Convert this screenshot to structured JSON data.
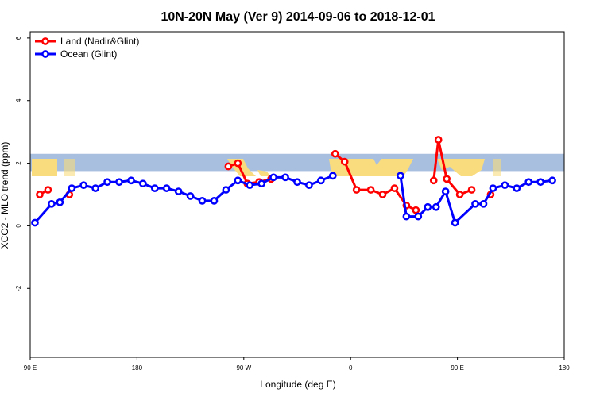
{
  "chart_data": {
    "type": "line",
    "title": "10N-20N May (Ver 9)   2014-09-06 to 2018-12-01",
    "xlabel": "Longitude (deg E)",
    "ylabel": "XCO2 - MLO trend (ppm)",
    "xlim": [
      90,
      540
    ],
    "ylim": [
      -4.2,
      6.2
    ],
    "x_ticks": [
      {
        "value": 90,
        "label": "90 E"
      },
      {
        "value": 180,
        "label": "180"
      },
      {
        "value": 270,
        "label": "90 W"
      },
      {
        "value": 360,
        "label": "0"
      },
      {
        "value": 450,
        "label": "90 E"
      },
      {
        "value": 540,
        "label": "180"
      }
    ],
    "y_ticks": [
      {
        "value": -2,
        "label": "-2"
      },
      {
        "value": 0,
        "label": "0"
      },
      {
        "value": 2,
        "label": "2"
      },
      {
        "value": 4,
        "label": "4"
      },
      {
        "value": 6,
        "label": "6"
      }
    ],
    "grid": false,
    "legend_position": "top-left",
    "background_map_band": {
      "y_range": [
        1.75,
        2.3
      ],
      "ocean_color": "#a9bfdf",
      "land_color": "#f9dc7e"
    },
    "series": [
      {
        "name": "Land (Nadir&Glint)",
        "color": "#ff0000",
        "points": [
          [
            98,
            1.0
          ],
          [
            105,
            1.15
          ],
          [
            123,
            1.0
          ],
          [
            257,
            1.9
          ],
          [
            265,
            2.0
          ],
          [
            273,
            1.35
          ],
          [
            283,
            1.4
          ],
          [
            293,
            1.5
          ],
          [
            347,
            2.3
          ],
          [
            355,
            2.05
          ],
          [
            365,
            1.15
          ],
          [
            377,
            1.15
          ],
          [
            387,
            1.0
          ],
          [
            397,
            1.2
          ],
          [
            407,
            0.65
          ],
          [
            415,
            0.5
          ],
          [
            430,
            1.45
          ],
          [
            434,
            2.75
          ],
          [
            441,
            1.5
          ],
          [
            452,
            1.0
          ],
          [
            462,
            1.15
          ],
          [
            478,
            1.0
          ]
        ],
        "segments": [
          [
            0,
            2
          ],
          [
            2,
            3
          ],
          [
            3,
            8
          ],
          [
            8,
            16
          ],
          [
            16,
            21
          ],
          [
            21,
            22
          ]
        ]
      },
      {
        "name": "Ocean (Glint)",
        "color": "#0000ff",
        "points": [
          [
            94,
            0.1
          ],
          [
            108,
            0.7
          ],
          [
            115,
            0.75
          ],
          [
            125,
            1.2
          ],
          [
            135,
            1.3
          ],
          [
            145,
            1.2
          ],
          [
            155,
            1.4
          ],
          [
            165,
            1.4
          ],
          [
            175,
            1.45
          ],
          [
            185,
            1.35
          ],
          [
            195,
            1.2
          ],
          [
            205,
            1.2
          ],
          [
            215,
            1.1
          ],
          [
            225,
            0.95
          ],
          [
            235,
            0.8
          ],
          [
            245,
            0.8
          ],
          [
            255,
            1.15
          ],
          [
            265,
            1.45
          ],
          [
            275,
            1.3
          ],
          [
            285,
            1.35
          ],
          [
            295,
            1.55
          ],
          [
            305,
            1.55
          ],
          [
            315,
            1.4
          ],
          [
            325,
            1.3
          ],
          [
            335,
            1.45
          ],
          [
            345,
            1.6
          ],
          [
            402,
            1.6
          ],
          [
            407,
            0.3
          ],
          [
            417,
            0.3
          ],
          [
            425,
            0.6
          ],
          [
            432,
            0.6
          ],
          [
            440,
            1.1
          ],
          [
            448,
            0.1
          ],
          [
            465,
            0.7
          ],
          [
            472,
            0.7
          ],
          [
            480,
            1.2
          ],
          [
            490,
            1.3
          ],
          [
            500,
            1.2
          ],
          [
            510,
            1.4
          ],
          [
            520,
            1.4
          ],
          [
            530,
            1.45
          ]
        ],
        "segments": [
          [
            0,
            26
          ],
          [
            26,
            41
          ]
        ]
      }
    ]
  }
}
